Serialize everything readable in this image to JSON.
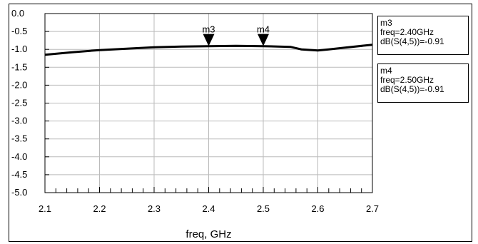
{
  "chart_data": {
    "type": "line",
    "title": "",
    "xlabel": "freq, GHz",
    "ylabel": "",
    "xlim": [
      2.1,
      2.7
    ],
    "ylim": [
      -5.0,
      0.0
    ],
    "x_ticks": [
      "2.1",
      "2.2",
      "2.3",
      "2.4",
      "2.5",
      "2.6",
      "2.7"
    ],
    "y_ticks": [
      "0.0",
      "-0.5",
      "-1.0",
      "-1.5",
      "-2.0",
      "-2.5",
      "-3.0",
      "-3.5",
      "-4.0",
      "-4.5",
      "-5.0"
    ],
    "grid": true,
    "series": [
      {
        "x": [
          2.1,
          2.15,
          2.2,
          2.25,
          2.3,
          2.35,
          2.4,
          2.45,
          2.5,
          2.55,
          2.57,
          2.6,
          2.62,
          2.65,
          2.7
        ],
        "y": [
          -1.15,
          -1.08,
          -1.02,
          -0.98,
          -0.94,
          -0.92,
          -0.91,
          -0.9,
          -0.91,
          -0.93,
          -1.0,
          -1.03,
          -1.0,
          -0.95,
          -0.87
        ]
      }
    ],
    "markers": [
      {
        "name": "m3",
        "freq": 2.4,
        "value": -0.91,
        "lines": [
          "m3",
          "freq=2.40GHz",
          "dB(S(4,5))=-0.91"
        ]
      },
      {
        "name": "m4",
        "freq": 2.5,
        "value": -0.91,
        "lines": [
          "m4",
          "freq=2.50GHz",
          "dB(S(4,5))=-0.91"
        ]
      }
    ]
  }
}
